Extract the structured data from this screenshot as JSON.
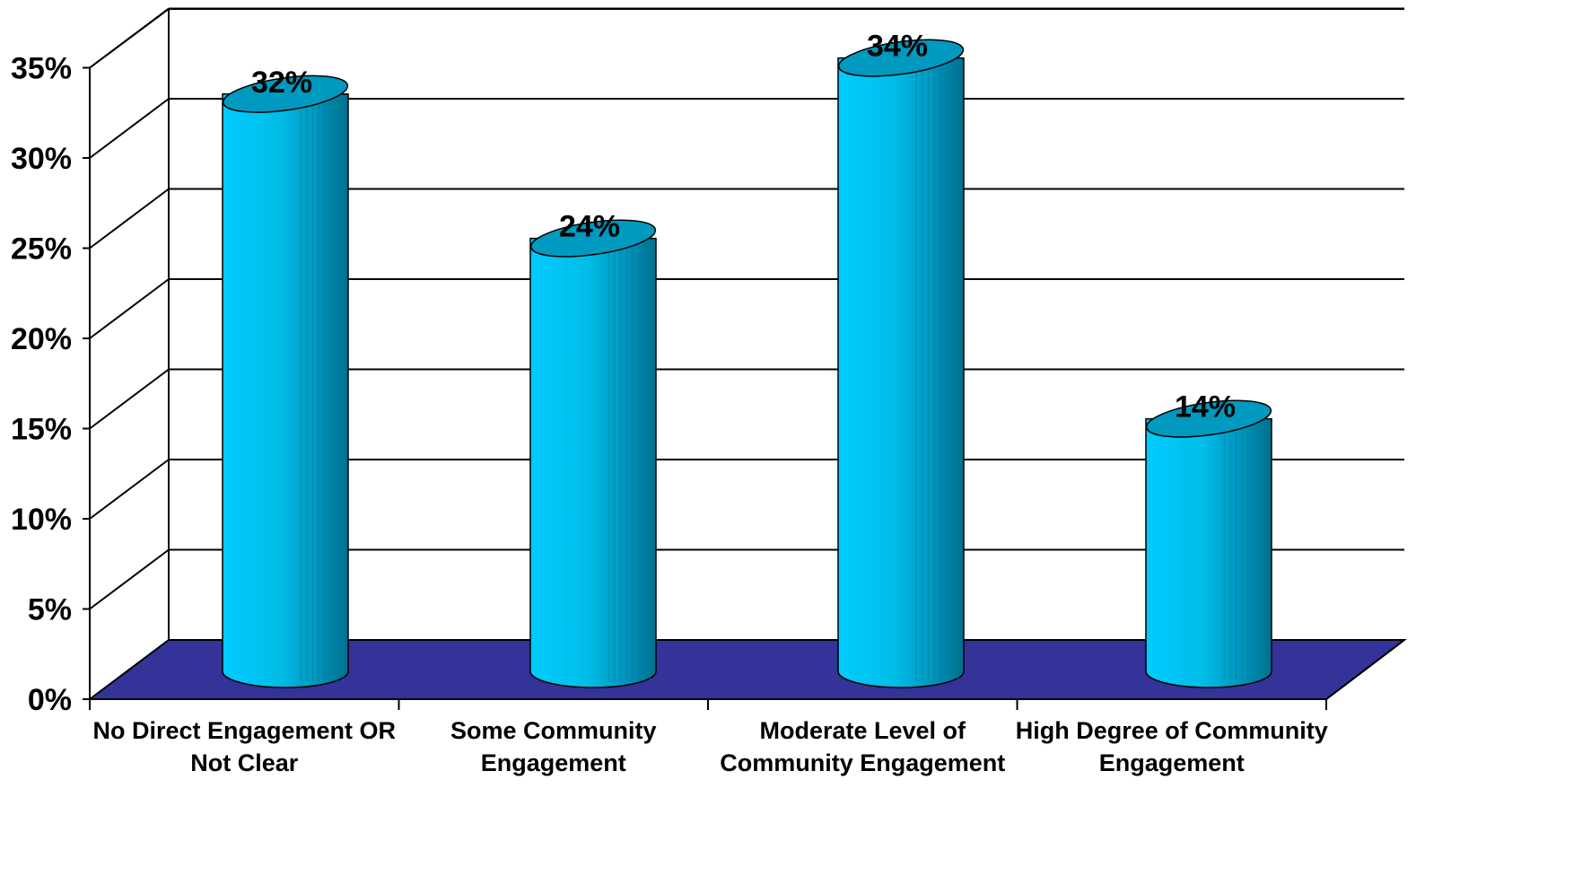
{
  "chart_data": {
    "type": "bar",
    "style": "3d-cylinder",
    "title": "",
    "xlabel": "",
    "ylabel": "",
    "categories": [
      [
        "No Direct Engagement OR",
        "Not Clear"
      ],
      [
        "Some Community",
        "Engagement"
      ],
      [
        "Moderate Level of",
        "Community Engagement"
      ],
      [
        "High Degree of Community",
        "Engagement"
      ]
    ],
    "values": [
      32,
      24,
      34,
      14
    ],
    "data_labels": [
      "32%",
      "24%",
      "34%",
      "14%"
    ],
    "ylim": [
      0,
      35
    ],
    "yticks": [
      0,
      5,
      10,
      15,
      20,
      25,
      30,
      35
    ],
    "ytick_labels": [
      "0%",
      "5%",
      "10%",
      "15%",
      "20%",
      "25%",
      "30%",
      "35%"
    ],
    "grid": true,
    "legend": "none",
    "colors": {
      "bar_light": "#00ccff",
      "bar_mid": "#00a6d4",
      "bar_dark": "#006f8e",
      "bar_top": "#0099bf",
      "floor": "#333399",
      "gridline": "#000000"
    }
  }
}
